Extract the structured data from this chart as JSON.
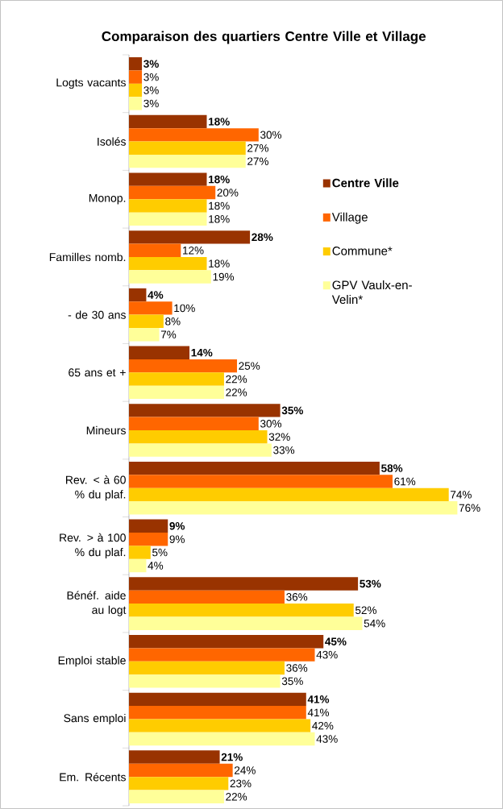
{
  "chart_data": {
    "type": "bar",
    "orientation": "horizontal",
    "title": "Comparaison des quartiers Centre Ville et Village",
    "categories": [
      "Logts vacants",
      "Isolés",
      "Monop.",
      "Familles nomb.",
      "- de 30 ans",
      "65 ans et +",
      "Mineurs",
      "Rev. < à 60 % du plaf.",
      "Rev. > à 100 % du plaf.",
      "Bénéf. aide au logt",
      "Emploi stable",
      "Sans emploi",
      "Em. Récents"
    ],
    "series": [
      {
        "name": "Centre Ville",
        "color": "#993300",
        "values": [
          3,
          18,
          18,
          28,
          4,
          14,
          35,
          58,
          9,
          53,
          45,
          41,
          21
        ],
        "value_labels": [
          "3%",
          "18%",
          "18%",
          "28%",
          "4%",
          "14%",
          "35%",
          "58%",
          "9%",
          "53%",
          "45%",
          "41%",
          "21%"
        ]
      },
      {
        "name": "Village",
        "color": "#ff6600",
        "values": [
          3,
          30,
          20,
          12,
          10,
          25,
          30,
          61,
          9,
          36,
          43,
          41,
          24
        ],
        "value_labels": [
          "3%",
          "30%",
          "20%",
          "12%",
          "10%",
          "25%",
          "30%",
          "61%",
          "9%",
          "36%",
          "43%",
          "41%",
          "24%"
        ]
      },
      {
        "name": "Commune*",
        "color": "#ffcc00",
        "values": [
          3,
          27,
          18,
          18,
          8,
          22,
          32,
          74,
          5,
          52,
          36,
          42,
          23
        ],
        "value_labels": [
          "3%",
          "27%",
          "18%",
          "18%",
          "8%",
          "22%",
          "32%",
          "74%",
          "5%",
          "52%",
          "36%",
          "42%",
          "23%"
        ]
      },
      {
        "name": "GPV Vaulx-en-Velin*",
        "color": "#ffff99",
        "values": [
          3,
          27,
          18,
          19,
          7,
          22,
          33,
          76,
          4,
          54,
          35,
          43,
          22
        ],
        "value_labels": [
          "3%",
          "27%",
          "18%",
          "19%",
          "7%",
          "22%",
          "33%",
          "76%",
          "4%",
          "54%",
          "35%",
          "43%",
          "22%"
        ]
      }
    ],
    "legend": "right"
  }
}
